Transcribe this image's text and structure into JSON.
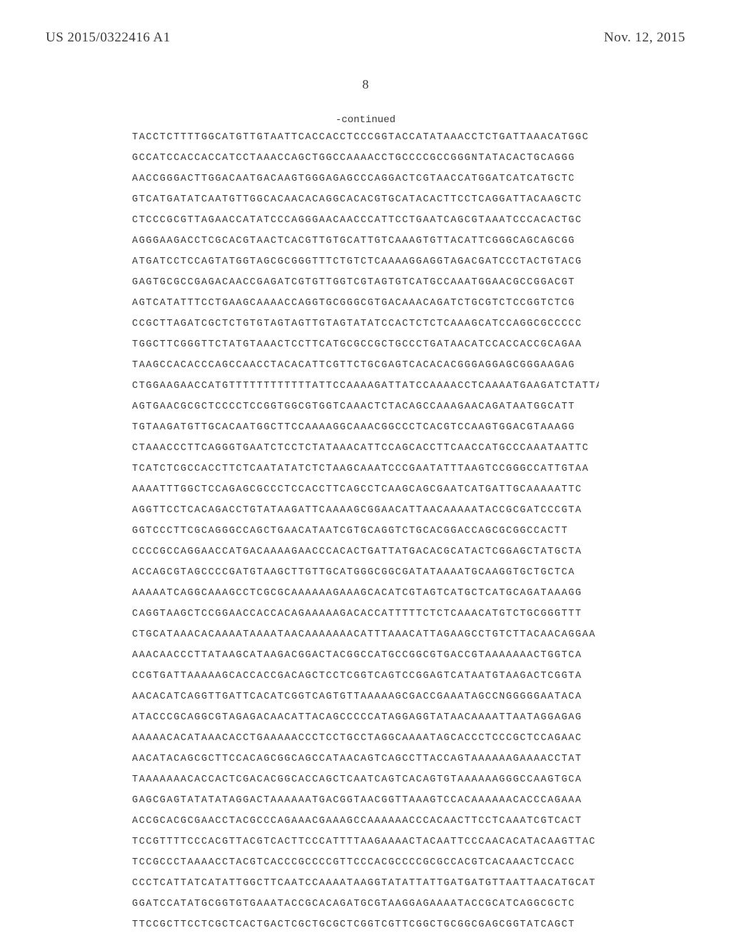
{
  "header": {
    "pub_number": "US 2015/0322416 A1",
    "pub_date": "Nov. 12, 2015"
  },
  "page_number": "8",
  "continued_label": "-continued",
  "sequence_lines": [
    "TACCTCTTTTGGCATGTTGTAATTCACCACCTCCCGGTACCATATAAACCTCTGATTAAACATGGC",
    "GCCATCCACCACCATCCTAAACCAGCTGGCCAAAACCTGCCCCGCCGGGNTATACACTGCAGGG",
    "AACCGGGACTTGGACAATGACAAGTGGGAGAGCCCAGGACTCGTAACCATGGATCATCATGCTC",
    "GTCATGATATCAATGTTGGCACAACACAGGCACACGTGCATACACTTCCTCAGGATTACAAGCTC",
    "CTCCCGCGTTAGAACCATATCCCAGGGAACAACCCATTCCTGAATCAGCGTAAATCCCACACTGC",
    "AGGGAAGACCTCGCACGTAACTCACGTTGTGCATTGTCAAAGTGTTACATTCGGGCAGCAGCGG",
    "ATGATCCTCCAGTATGGTAGCGCGGGTTTCTGTCTCAAAAGGAGGTAGACGATCCCTACTGTACG",
    "GAGTGCGCCGAGACAACCGAGATCGTGTTGGTCGTAGTGTCATGCCAAATGGAACGCCGGACGT",
    "AGTCATATTTCCTGAAGCAAAACCAGGTGCGGGCGTGACAAACAGATCTGCGTCTCCGGTCTCG",
    "CCGCTTAGATCGCTCTGTGTAGTAGTTGTAGTATATCCACTCTCTCAAAGCATCCAGGCGCCCCC",
    "TGGCTTCGGGTTCTATGTAAACTCCTTCATGCGCCGCTGCCCTGATAACATCCACCACCGCAGAA",
    "TAAGCCACACCCAGCCAACCTACACATTCGTTCTGCGAGTCACACACGGGAGGAGCGGGAAGAG",
    "CTGGAAGAACCATGTTTTTTTTTTTTATTCCAAAAGATTATCCAAAACCTCAAAATGAAGATCTATTA",
    "AGTGAACGCGCTCCCCTCCGGTGGCGTGGTCAAACTCTACAGCCAAAGAACAGATAATGGCATT",
    "TGTAAGATGTTGCACAATGGCTTCCAAAAGGCAAACGGCCCTCACGTCCAAGTGGACGTAAAGG",
    "CTAAACCCTTCAGGGTGAATCTCCTCTATAAACATTCCAGCACCTTCAACCATGCCCAAATAATTC",
    "TCATCTCGCCACCTTCTCAATATATCTCTAAGCAAATCCCGAATATTTAAGTCCGGGCCATTGTAA",
    "AAAATTTGGCTCCAGAGCGCCCTCCACCTTCAGCCTCAAGCAGCGAATCATGATTGCAAAAATTC",
    "AGGTTCCTCACAGACCTGTATAAGATTCAAAAGCGGAACATTAACAAAAATACCGCGATCCCGTA",
    "GGTCCCTTCGCAGGGCCAGCTGAACATAATCGTGCAGGTCTGCACGGACCAGCGCGGCCACTT",
    "CCCCGCCAGGAACCATGACAAAAGAACCCACACTGATTATGACACGCATACTCGGAGCTATGCTA",
    "ACCAGCGTAGCCCCGATGTAAGCTTGTTGCATGGGCGGCGATATAAAATGCAAGGTGCTGCTCA",
    "AAAAATCAGGCAAAGCCTCGCGCAAAAAAGAAAGCACATCGTAGTCATGCTCATGCAGATAAAGG",
    "CAGGTAAGCTCCGGAACCACCACAGAAAAAGACACCATTTTTCTCTCAAACATGTCTGCGGGTTT",
    "CTGCATAAACACAAAATAAAATAACAAAAAAACATTTAAACATTAGAAGCCTGTCTTACAACAGGAA",
    "AAACAACCCTTATAAGCATAAGACGGACTACGGCCATGCCGGCGTGACCGTAAAAAAACTGGTCA",
    "CCGTGATTAAAAAGCACCACCGACAGCTCCTCGGTCAGTCCGGAGTCATAATGTAAGACTCGGTA",
    "AACACATCAGGTTGATTCACATCGGTCAGTGTTAAAAAGCGACCGAAATAGCCNGGGGGAATACA",
    "ATACCCGCAGGCGTAGAGACAACATTACAGCCCCCATAGGAGGTATAACAAAATTAATAGGAGAG",
    "AAAAACACATAAACACCTGAAAAACCCTCCTGCCTAGGCAAAATAGCACCCTCCCGCTCCAGAAC",
    "AACATACAGCGCTTCCACAGCGGCAGCCATAACAGTCAGCCTTACCAGTAAAAAAGAAAACCTAT",
    "TAAAAAAACACCACTCGACACGGCACCAGCTCAATCAGTCACAGTGTAAAAAAGGGCCAAGTGCA",
    "GAGCGAGTATATATAGGACTAAAAAATGACGGTAACGGTTAAAGTCCACAAAAAACACCCAGAAA",
    "ACCGCACGCGAACCTACGCCCAGAAACGAAAGCCAAAAAACCCACAACTTCCTCAAATCGTCACT",
    "TCCGTTTTCCCACGTTACGTCACTTCCCATTTTAAGAAAACTACAATTCCCAACACATACAAGTTAC",
    "TCCGCCCTAAAACCTACGTCACCCGCCCCGTTCCCACGCCCCGCGCCACGTCACAAACTCCACC",
    "CCCTCATTATCATATTGGCTTCAATCCAAAATAAGGTATATTATTGATGATGTTAATTAACATGCAT",
    "GGATCCATATGCGGTGTGAAATACCGCACAGATGCGTAAGGAGAAAATACCGCATCAGGCGCTC",
    "TTCCGCTTCCTCGCTCACTGACTCGCTGCGCTCGGTCGTTCGGCTGCGGCGAGCGGTATCAGCT"
  ]
}
